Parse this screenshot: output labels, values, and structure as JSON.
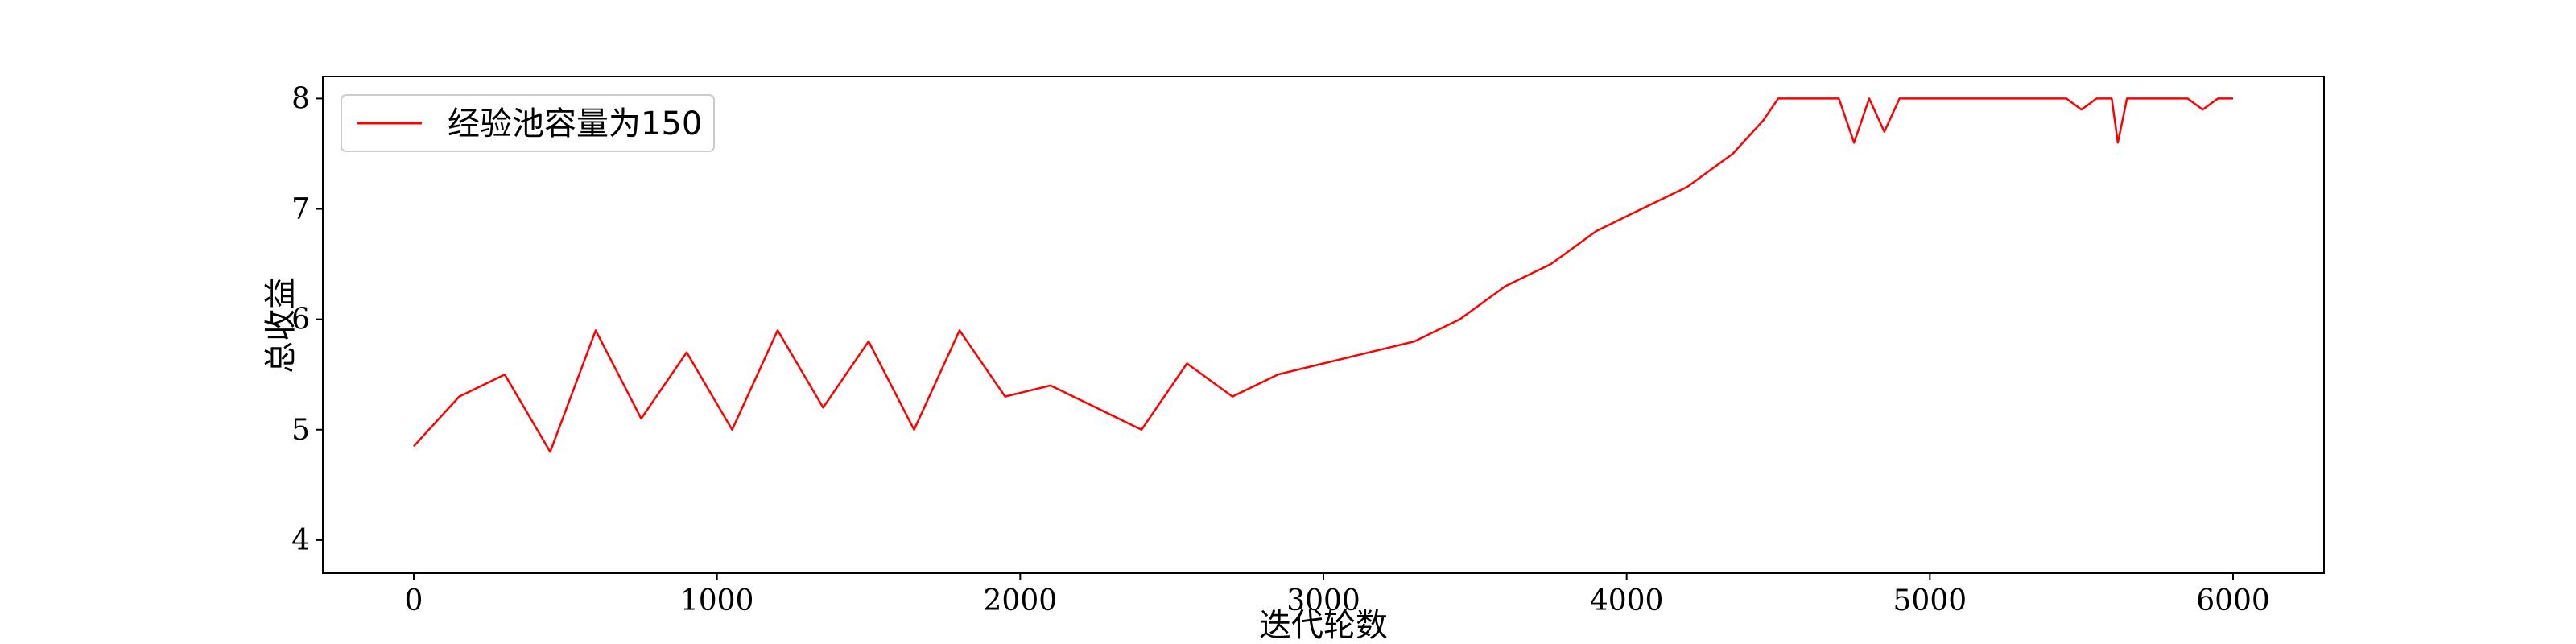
{
  "chart_data": {
    "type": "line",
    "title": "",
    "xlabel": "迭代轮数",
    "ylabel": "总收益",
    "xlim": [
      -300,
      6300
    ],
    "ylim": [
      3.7,
      8.2
    ],
    "xticks": [
      0,
      1000,
      2000,
      3000,
      4000,
      5000,
      6000
    ],
    "xtick_labels": [
      "0",
      "1000",
      "2000",
      "3000",
      "4000",
      "5000",
      "6000"
    ],
    "yticks": [
      4,
      5,
      6,
      7,
      8
    ],
    "ytick_labels": [
      "4",
      "5",
      "6",
      "7",
      "8"
    ],
    "grid": false,
    "legend_position": "top-left",
    "colors": {
      "series": "#ff0000",
      "axis": "#000000",
      "background": "#ffffff"
    },
    "series": [
      {
        "name": "经验池容量为150",
        "x": [
          0,
          150,
          300,
          450,
          600,
          750,
          900,
          1050,
          1200,
          1350,
          1500,
          1650,
          1800,
          1950,
          2100,
          2250,
          2400,
          2550,
          2700,
          2850,
          3000,
          3150,
          3300,
          3450,
          3600,
          3750,
          3900,
          4050,
          4200,
          4350,
          4450,
          4500,
          4550,
          4650,
          4700,
          4750,
          4800,
          4850,
          4900,
          4950,
          5000,
          5050,
          5100,
          5200,
          5300,
          5400,
          5450,
          5500,
          5550,
          5600,
          5620,
          5650,
          5700,
          5800,
          5850,
          5900,
          5950,
          6000
        ],
        "y": [
          4.85,
          5.3,
          5.5,
          4.8,
          5.9,
          5.1,
          5.7,
          5.0,
          5.9,
          5.2,
          5.8,
          5.0,
          5.9,
          5.3,
          5.4,
          5.2,
          5.0,
          5.6,
          5.3,
          5.5,
          5.6,
          5.7,
          5.8,
          6.0,
          6.3,
          6.5,
          6.8,
          7.0,
          7.2,
          7.5,
          7.8,
          8.0,
          8.0,
          8.0,
          8.0,
          7.6,
          8.0,
          7.7,
          8.0,
          8.0,
          8.0,
          8.0,
          8.0,
          8.0,
          8.0,
          8.0,
          8.0,
          7.9,
          8.0,
          8.0,
          7.6,
          8.0,
          8.0,
          8.0,
          8.0,
          7.9,
          8.0,
          8.0
        ]
      }
    ]
  }
}
